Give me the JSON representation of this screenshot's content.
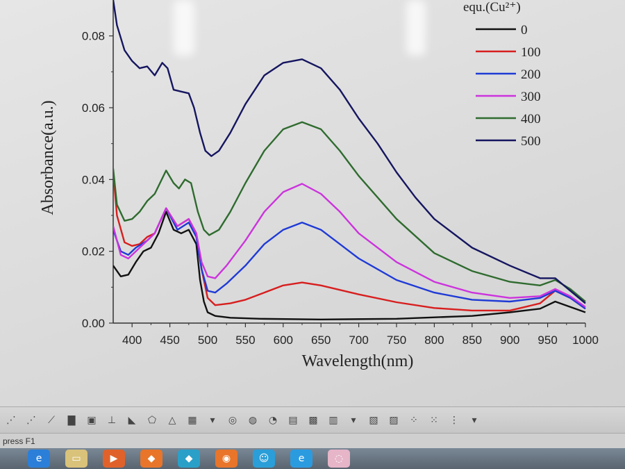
{
  "chart_data": {
    "type": "line",
    "title": "",
    "xlabel": "Wavelength(nm)",
    "ylabel": "Absorbance(a.u.)",
    "xlim": [
      375,
      1000
    ],
    "ylim": [
      0,
      0.09
    ],
    "x_ticks": [
      "400",
      "450",
      "500",
      "550",
      "600",
      "650",
      "700",
      "750",
      "800",
      "850",
      "900",
      "950",
      "1000"
    ],
    "y_ticks": [
      "0.00",
      "0.02",
      "0.04",
      "0.06",
      "0.08"
    ],
    "legend_title": "equ.(Cu²⁺)",
    "legend_position": "top-right",
    "grid": false,
    "series": [
      {
        "name": "0",
        "color": "#111111",
        "points": [
          [
            375,
            0.016
          ],
          [
            385,
            0.013
          ],
          [
            395,
            0.0135
          ],
          [
            405,
            0.017
          ],
          [
            415,
            0.02
          ],
          [
            425,
            0.021
          ],
          [
            435,
            0.025
          ],
          [
            445,
            0.031
          ],
          [
            455,
            0.026
          ],
          [
            465,
            0.025
          ],
          [
            475,
            0.026
          ],
          [
            485,
            0.022
          ],
          [
            490,
            0.012
          ],
          [
            495,
            0.006
          ],
          [
            500,
            0.003
          ],
          [
            510,
            0.002
          ],
          [
            530,
            0.0015
          ],
          [
            570,
            0.0012
          ],
          [
            650,
            0.001
          ],
          [
            750,
            0.0012
          ],
          [
            850,
            0.002
          ],
          [
            900,
            0.003
          ],
          [
            940,
            0.004
          ],
          [
            960,
            0.006
          ],
          [
            980,
            0.0045
          ],
          [
            1000,
            0.003
          ]
        ]
      },
      {
        "name": "100",
        "color": "#d81e1e",
        "points": [
          [
            375,
            0.042
          ],
          [
            380,
            0.03
          ],
          [
            390,
            0.0225
          ],
          [
            400,
            0.0215
          ],
          [
            410,
            0.022
          ],
          [
            420,
            0.024
          ],
          [
            430,
            0.025
          ],
          [
            445,
            0.032
          ],
          [
            460,
            0.027
          ],
          [
            475,
            0.029
          ],
          [
            485,
            0.025
          ],
          [
            492,
            0.015
          ],
          [
            500,
            0.007
          ],
          [
            510,
            0.005
          ],
          [
            530,
            0.0055
          ],
          [
            550,
            0.0065
          ],
          [
            575,
            0.0085
          ],
          [
            600,
            0.0105
          ],
          [
            625,
            0.0113
          ],
          [
            650,
            0.0105
          ],
          [
            700,
            0.008
          ],
          [
            750,
            0.0058
          ],
          [
            800,
            0.0042
          ],
          [
            850,
            0.0035
          ],
          [
            900,
            0.0035
          ],
          [
            940,
            0.0055
          ],
          [
            960,
            0.009
          ],
          [
            980,
            0.007
          ],
          [
            1000,
            0.004
          ]
        ]
      },
      {
        "name": "200",
        "color": "#1f3ad6",
        "points": [
          [
            375,
            0.026
          ],
          [
            385,
            0.02
          ],
          [
            395,
            0.019
          ],
          [
            405,
            0.021
          ],
          [
            420,
            0.023
          ],
          [
            430,
            0.025
          ],
          [
            445,
            0.032
          ],
          [
            460,
            0.026
          ],
          [
            475,
            0.028
          ],
          [
            485,
            0.024
          ],
          [
            492,
            0.015
          ],
          [
            500,
            0.009
          ],
          [
            510,
            0.0085
          ],
          [
            525,
            0.011
          ],
          [
            550,
            0.016
          ],
          [
            575,
            0.022
          ],
          [
            600,
            0.026
          ],
          [
            625,
            0.028
          ],
          [
            650,
            0.026
          ],
          [
            675,
            0.022
          ],
          [
            700,
            0.018
          ],
          [
            750,
            0.012
          ],
          [
            800,
            0.0085
          ],
          [
            850,
            0.0065
          ],
          [
            900,
            0.006
          ],
          [
            940,
            0.007
          ],
          [
            960,
            0.009
          ],
          [
            980,
            0.007
          ],
          [
            1000,
            0.004
          ]
        ]
      },
      {
        "name": "300",
        "color": "#cc33dd",
        "points": [
          [
            375,
            0.027
          ],
          [
            385,
            0.019
          ],
          [
            395,
            0.018
          ],
          [
            405,
            0.02
          ],
          [
            420,
            0.023
          ],
          [
            430,
            0.025
          ],
          [
            445,
            0.032
          ],
          [
            460,
            0.027
          ],
          [
            475,
            0.029
          ],
          [
            485,
            0.025
          ],
          [
            492,
            0.017
          ],
          [
            500,
            0.013
          ],
          [
            510,
            0.0125
          ],
          [
            525,
            0.016
          ],
          [
            550,
            0.023
          ],
          [
            575,
            0.031
          ],
          [
            600,
            0.0365
          ],
          [
            625,
            0.0388
          ],
          [
            650,
            0.036
          ],
          [
            675,
            0.031
          ],
          [
            700,
            0.025
          ],
          [
            750,
            0.017
          ],
          [
            800,
            0.0115
          ],
          [
            850,
            0.0085
          ],
          [
            900,
            0.007
          ],
          [
            940,
            0.0075
          ],
          [
            960,
            0.0095
          ],
          [
            980,
            0.0075
          ],
          [
            1000,
            0.0045
          ]
        ]
      },
      {
        "name": "400",
        "color": "#2f6b2f",
        "points": [
          [
            375,
            0.043
          ],
          [
            380,
            0.033
          ],
          [
            390,
            0.0285
          ],
          [
            400,
            0.029
          ],
          [
            410,
            0.031
          ],
          [
            420,
            0.034
          ],
          [
            430,
            0.036
          ],
          [
            445,
            0.0425
          ],
          [
            455,
            0.039
          ],
          [
            462,
            0.0375
          ],
          [
            470,
            0.04
          ],
          [
            478,
            0.039
          ],
          [
            487,
            0.031
          ],
          [
            495,
            0.026
          ],
          [
            502,
            0.0245
          ],
          [
            515,
            0.026
          ],
          [
            530,
            0.031
          ],
          [
            550,
            0.039
          ],
          [
            575,
            0.048
          ],
          [
            600,
            0.054
          ],
          [
            625,
            0.056
          ],
          [
            650,
            0.054
          ],
          [
            675,
            0.048
          ],
          [
            700,
            0.041
          ],
          [
            750,
            0.029
          ],
          [
            800,
            0.0195
          ],
          [
            850,
            0.0145
          ],
          [
            900,
            0.0115
          ],
          [
            940,
            0.0105
          ],
          [
            960,
            0.012
          ],
          [
            980,
            0.0095
          ],
          [
            1000,
            0.006
          ]
        ]
      },
      {
        "name": "500",
        "color": "#151560",
        "points": [
          [
            375,
            0.09
          ],
          [
            380,
            0.083
          ],
          [
            390,
            0.076
          ],
          [
            400,
            0.073
          ],
          [
            410,
            0.071
          ],
          [
            420,
            0.0715
          ],
          [
            430,
            0.069
          ],
          [
            440,
            0.0725
          ],
          [
            447,
            0.071
          ],
          [
            455,
            0.065
          ],
          [
            465,
            0.0645
          ],
          [
            475,
            0.064
          ],
          [
            482,
            0.06
          ],
          [
            490,
            0.053
          ],
          [
            497,
            0.048
          ],
          [
            505,
            0.0465
          ],
          [
            515,
            0.048
          ],
          [
            530,
            0.053
          ],
          [
            550,
            0.061
          ],
          [
            575,
            0.069
          ],
          [
            600,
            0.0725
          ],
          [
            625,
            0.0735
          ],
          [
            650,
            0.071
          ],
          [
            675,
            0.065
          ],
          [
            700,
            0.057
          ],
          [
            725,
            0.05
          ],
          [
            750,
            0.042
          ],
          [
            775,
            0.035
          ],
          [
            800,
            0.029
          ],
          [
            850,
            0.021
          ],
          [
            900,
            0.016
          ],
          [
            940,
            0.0125
          ],
          [
            960,
            0.0125
          ],
          [
            980,
            0.009
          ],
          [
            1000,
            0.0055
          ]
        ]
      }
    ]
  },
  "toolbar": {
    "icons": [
      "scatter-icon",
      "line-symbol-icon",
      "line-icon",
      "bar-chart-icon",
      "box-plot-icon",
      "error-bar-icon",
      "area-icon",
      "polar-icon",
      "ternary-icon",
      "3d-icon",
      "dropdown-icon",
      "bubble-icon",
      "contour-icon",
      "pie-icon",
      "surface-icon",
      "image-icon",
      "table-icon",
      "dropdown-icon",
      "layer-icon",
      "merge-icon",
      "arrange-icon",
      "align-icon",
      "extract-icon",
      "dropdown-icon"
    ]
  },
  "status_bar": {
    "help_text": "press F1"
  },
  "taskbar": {
    "apps": [
      {
        "name": "ie-icon",
        "color": "#2b7fd8"
      },
      {
        "name": "folder-icon",
        "color": "#d9c27a"
      },
      {
        "name": "media-player-icon",
        "color": "#e0622a"
      },
      {
        "name": "app-icon",
        "color": "#e8752a"
      },
      {
        "name": "app-icon",
        "color": "#2aa0c8"
      },
      {
        "name": "browser-icon",
        "color": "#e8752a"
      },
      {
        "name": "contacts-icon",
        "color": "#2a9ed8"
      },
      {
        "name": "ie-icon",
        "color": "#2b9be0"
      },
      {
        "name": "origin-icon",
        "color": "#e6b5c8"
      }
    ]
  }
}
